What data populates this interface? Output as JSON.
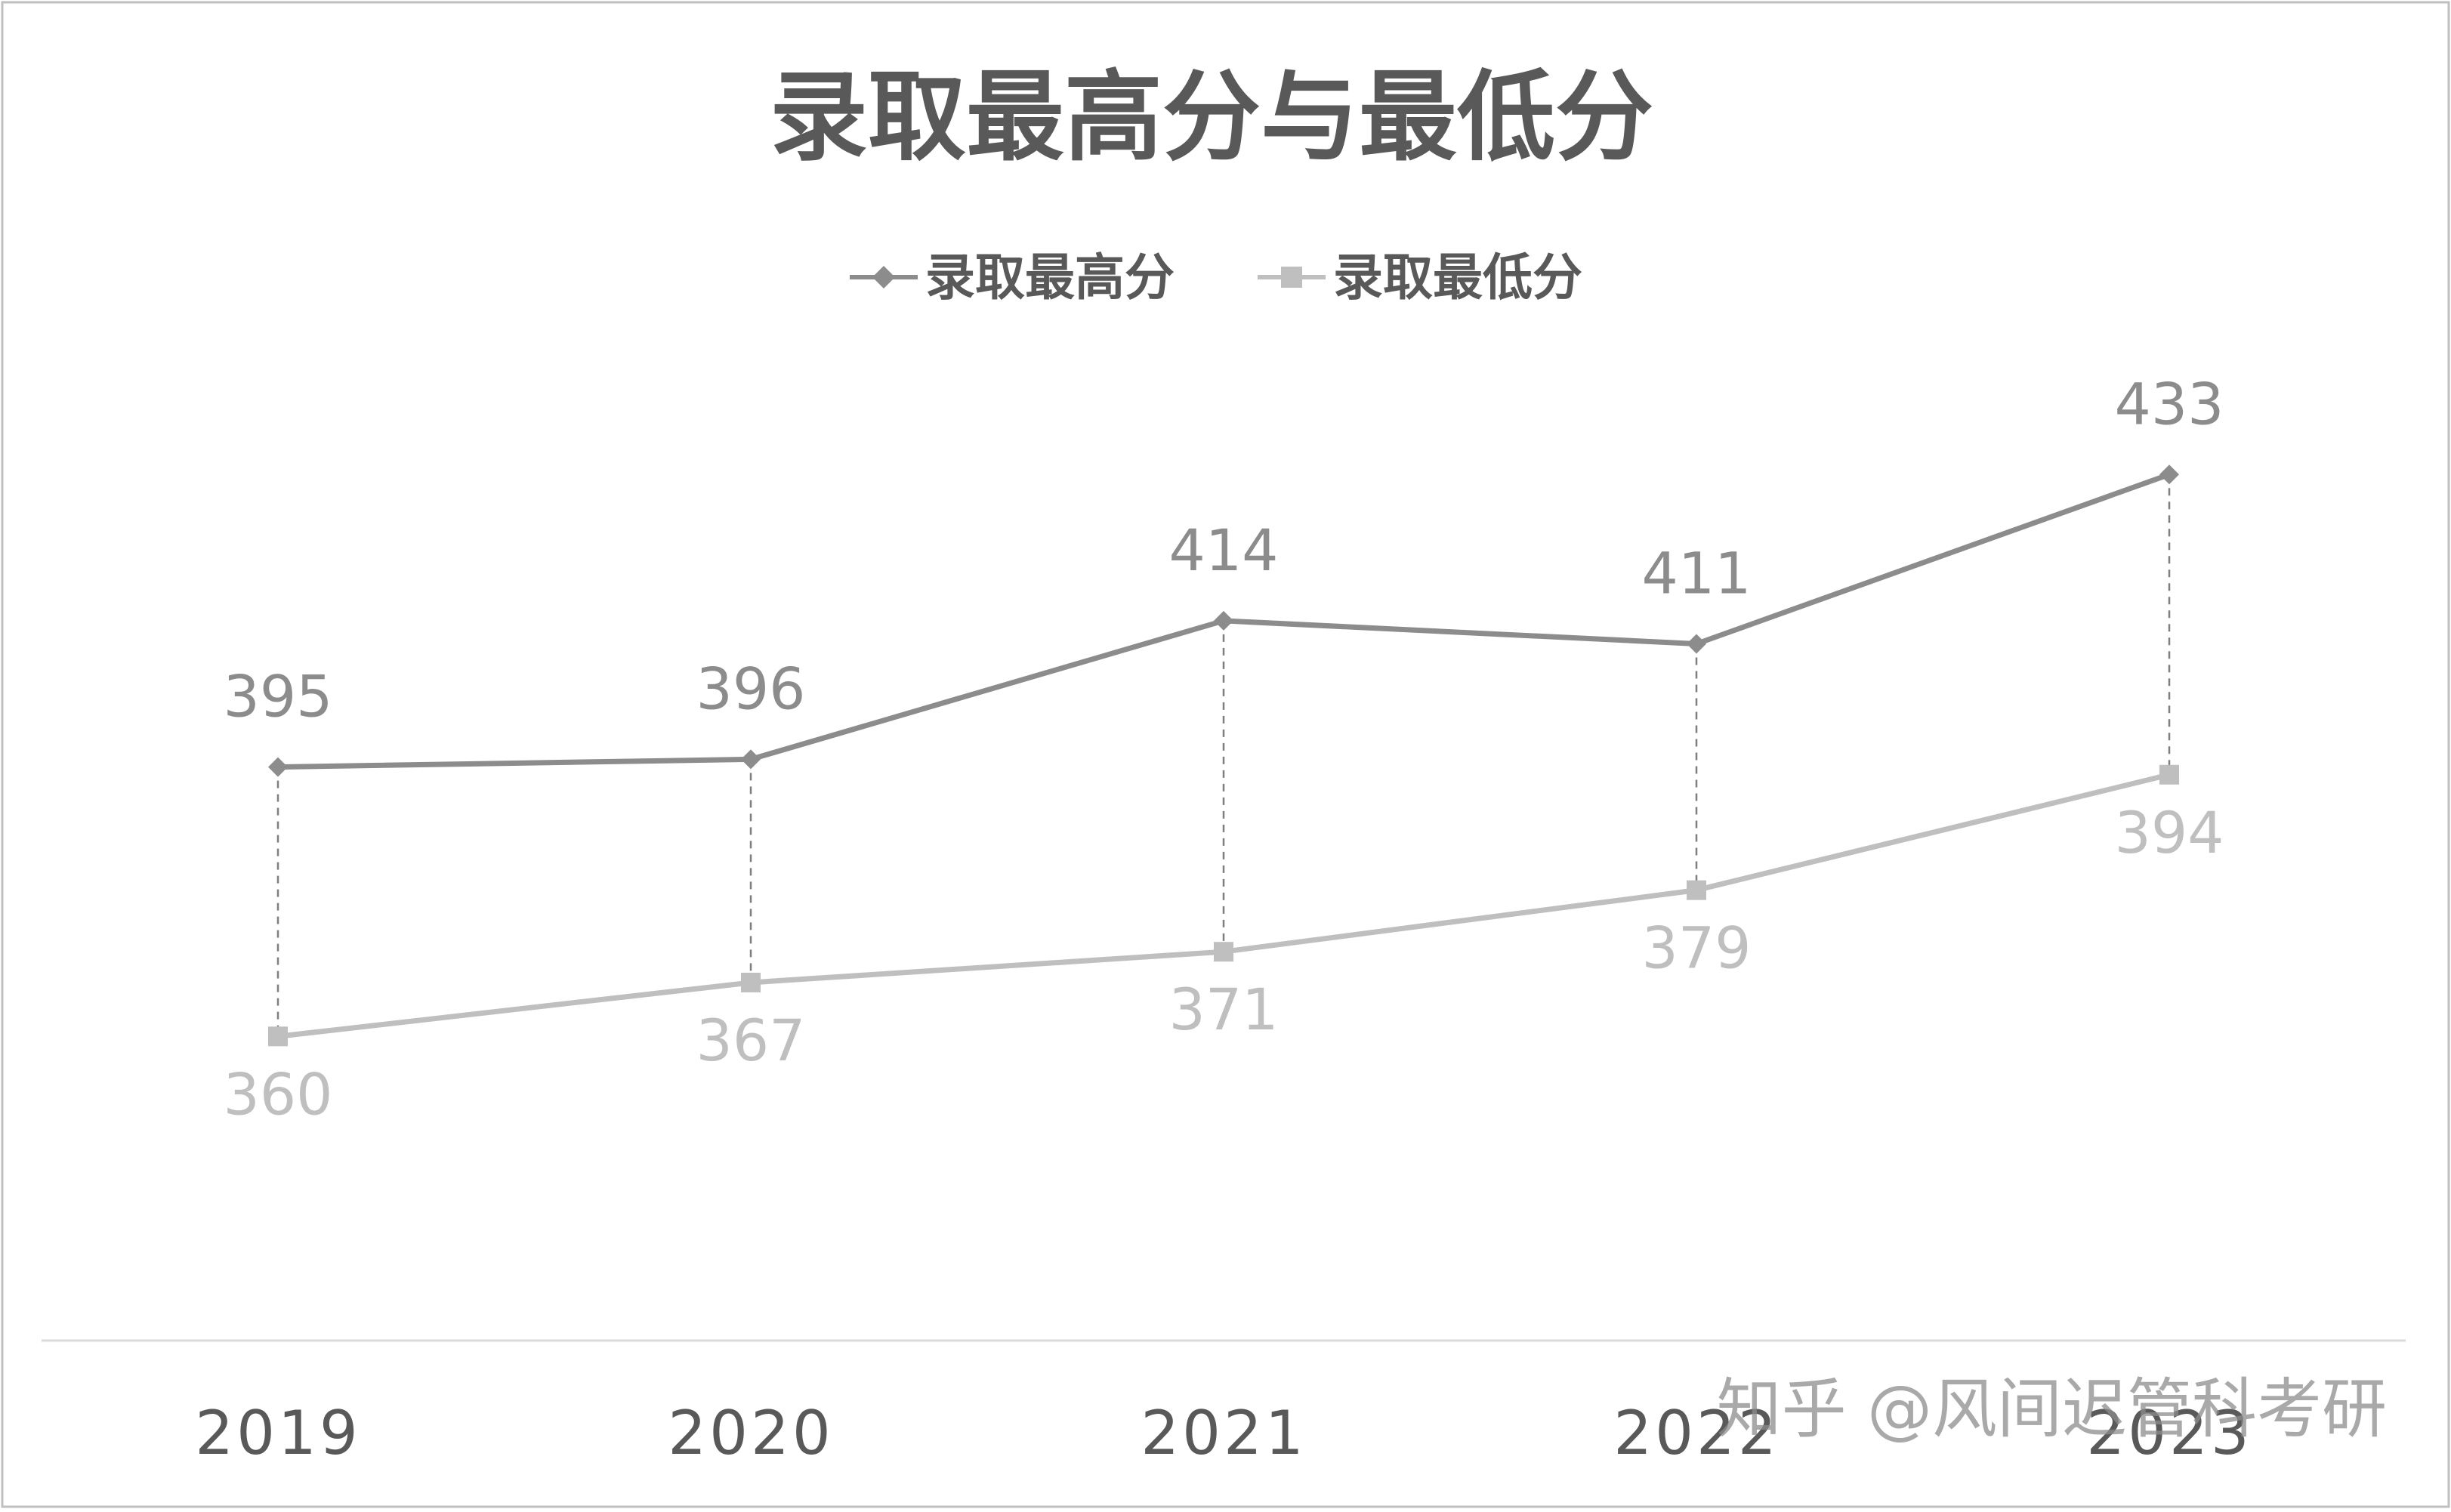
{
  "chart_data": {
    "type": "line",
    "title": "录取最高分与最低分",
    "categories": [
      "2019",
      "2020",
      "2021",
      "2022",
      "2023"
    ],
    "series": [
      {
        "name": "录取最高分",
        "values": [
          395,
          396,
          414,
          411,
          433
        ],
        "color": "#8c8c8c",
        "marker": "diamond",
        "label_position": "above"
      },
      {
        "name": "录取最低分",
        "values": [
          360,
          367,
          371,
          379,
          394
        ],
        "color": "#bfbfbf",
        "marker": "square",
        "label_position": "below"
      }
    ],
    "drop_lines": true,
    "legend_position": "top",
    "grid": false,
    "ylim": [
      320,
      450
    ],
    "colors": {
      "title": "#595959",
      "axis_line": "#d9d9d9",
      "category_label": "#595959",
      "watermark": "#8c8c8c"
    }
  },
  "watermark": "知乎 @风间迟管科考研"
}
